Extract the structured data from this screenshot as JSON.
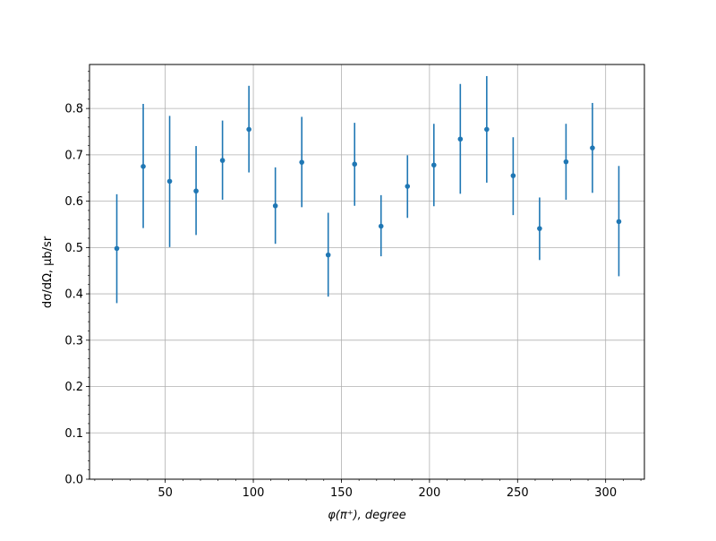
{
  "chart_data": {
    "type": "scatter",
    "title": "",
    "xlabel": "φ(π⁺), degree",
    "ylabel": "dσ/dΩ, μb/sr",
    "xlim": [
      7,
      322
    ],
    "ylim": [
      0,
      0.895
    ],
    "xticks": [
      50,
      100,
      150,
      200,
      250,
      300
    ],
    "xtick_labels": [
      "50",
      "100",
      "150",
      "200",
      "250",
      "300"
    ],
    "yticks": [
      0.0,
      0.1,
      0.2,
      0.3,
      0.4,
      0.5,
      0.6,
      0.7,
      0.8
    ],
    "ytick_labels": [
      "0.0",
      "0.1",
      "0.2",
      "0.3",
      "0.4",
      "0.5",
      "0.6",
      "0.7",
      "0.8"
    ],
    "grid": true,
    "legend": "none",
    "color": "#1f77b4",
    "series": [
      {
        "x": [
          22.5,
          37.5,
          52.5,
          67.5,
          82.5,
          97.5,
          112.5,
          127.5,
          142.5,
          157.5,
          172.5,
          187.5,
          202.5,
          217.5,
          232.5,
          247.5,
          262.5,
          277.5,
          292.5,
          307.5
        ],
        "y": [
          0.498,
          0.675,
          0.643,
          0.622,
          0.688,
          0.755,
          0.59,
          0.684,
          0.484,
          0.68,
          0.546,
          0.632,
          0.678,
          0.734,
          0.755,
          0.655,
          0.541,
          0.685,
          0.715,
          0.556
        ],
        "yerr_low": [
          0.118,
          0.133,
          0.142,
          0.095,
          0.085,
          0.093,
          0.082,
          0.097,
          0.09,
          0.09,
          0.065,
          0.068,
          0.089,
          0.118,
          0.115,
          0.085,
          0.068,
          0.082,
          0.097,
          0.118
        ],
        "yerr_high": [
          0.117,
          0.135,
          0.141,
          0.097,
          0.086,
          0.094,
          0.083,
          0.098,
          0.091,
          0.089,
          0.067,
          0.067,
          0.089,
          0.119,
          0.115,
          0.083,
          0.067,
          0.082,
          0.097,
          0.12
        ]
      }
    ]
  }
}
